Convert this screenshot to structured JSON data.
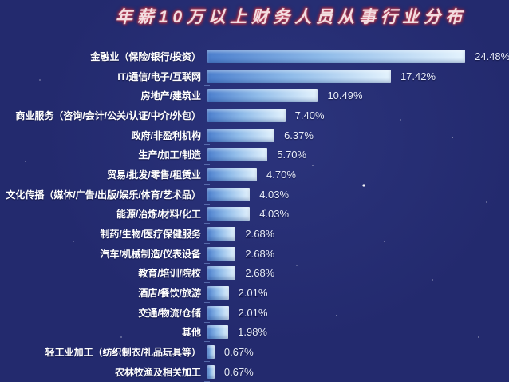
{
  "title": "年薪10万以上财务人员从事行业分布",
  "chart_data": {
    "type": "bar",
    "orientation": "horizontal",
    "title": "年薪10万以上财务人员从事行业分布",
    "xlabel": "",
    "ylabel": "",
    "xlim": [
      0,
      26
    ],
    "grid": false,
    "legend": null,
    "categories": [
      "金融业（保险/银行/投资）",
      "IT/通信/电子/互联网",
      "房地产/建筑业",
      "商业服务（咨询/会计/公关/认证/中介/外包）",
      "政府/非盈利机构",
      "生产/加工/制造",
      "贸易/批发/零售/租赁业",
      "文化传播（媒体/广告/出版/娱乐/体育/艺术品）",
      "能源/冶炼/材料/化工",
      "制药/生物/医疗保健服务",
      "汽车/机械制造/仪表设备",
      "教育/培训/院校",
      "酒店/餐饮/旅游",
      "交通/物流/仓储",
      "其他",
      "轻工业加工（纺织制衣/礼品玩具等）",
      "农林牧渔及相关加工"
    ],
    "values": [
      24.48,
      17.42,
      10.49,
      7.4,
      6.37,
      5.7,
      4.7,
      4.03,
      4.03,
      2.68,
      2.68,
      2.68,
      2.01,
      2.01,
      1.98,
      0.67,
      0.67
    ],
    "value_labels": [
      "24.48%",
      "17.42%",
      "10.49%",
      "7.40%",
      "6.37%",
      "5.70%",
      "4.70%",
      "4.03%",
      "4.03%",
      "2.68%",
      "2.68%",
      "2.68%",
      "2.01%",
      "2.01%",
      "1.98%",
      "0.67%",
      "0.67%"
    ],
    "colors": {
      "background": "#232a6e",
      "bar_gradient_start": "#4c7fcd",
      "bar_gradient_end": "#e4f3fd",
      "label_text": "#ffffff",
      "value_text": "#e9eefb",
      "title_text": "#f3dee1",
      "title_glow": "#8e2136",
      "axis_line": "#87a5e1"
    }
  }
}
